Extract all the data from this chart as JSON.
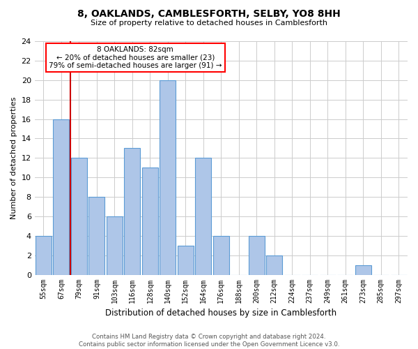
{
  "title1": "8, OAKLANDS, CAMBLESFORTH, SELBY, YO8 8HH",
  "title2": "Size of property relative to detached houses in Camblesforth",
  "xlabel": "Distribution of detached houses by size in Camblesforth",
  "ylabel": "Number of detached properties",
  "categories": [
    "55sqm",
    "67sqm",
    "79sqm",
    "91sqm",
    "103sqm",
    "116sqm",
    "128sqm",
    "140sqm",
    "152sqm",
    "164sqm",
    "176sqm",
    "188sqm",
    "200sqm",
    "212sqm",
    "224sqm",
    "237sqm",
    "249sqm",
    "261sqm",
    "273sqm",
    "285sqm",
    "297sqm"
  ],
  "values": [
    4,
    16,
    12,
    8,
    6,
    13,
    11,
    20,
    3,
    12,
    4,
    0,
    4,
    2,
    0,
    0,
    0,
    0,
    1,
    0,
    0
  ],
  "bar_color": "#aec6e8",
  "bar_edge_color": "#5b9bd5",
  "red_line_index": 2,
  "annotation_text": "8 OAKLANDS: 82sqm\n← 20% of detached houses are smaller (23)\n79% of semi-detached houses are larger (91) →",
  "annotation_box_color": "white",
  "annotation_box_edge_color": "red",
  "ylim": [
    0,
    24
  ],
  "yticks": [
    0,
    2,
    4,
    6,
    8,
    10,
    12,
    14,
    16,
    18,
    20,
    22,
    24
  ],
  "grid_color": "#cccccc",
  "background_color": "white",
  "footer": "Contains HM Land Registry data © Crown copyright and database right 2024.\nContains public sector information licensed under the Open Government Licence v3.0.",
  "red_line_color": "#cc0000",
  "fig_width": 6.0,
  "fig_height": 5.0,
  "dpi": 100
}
